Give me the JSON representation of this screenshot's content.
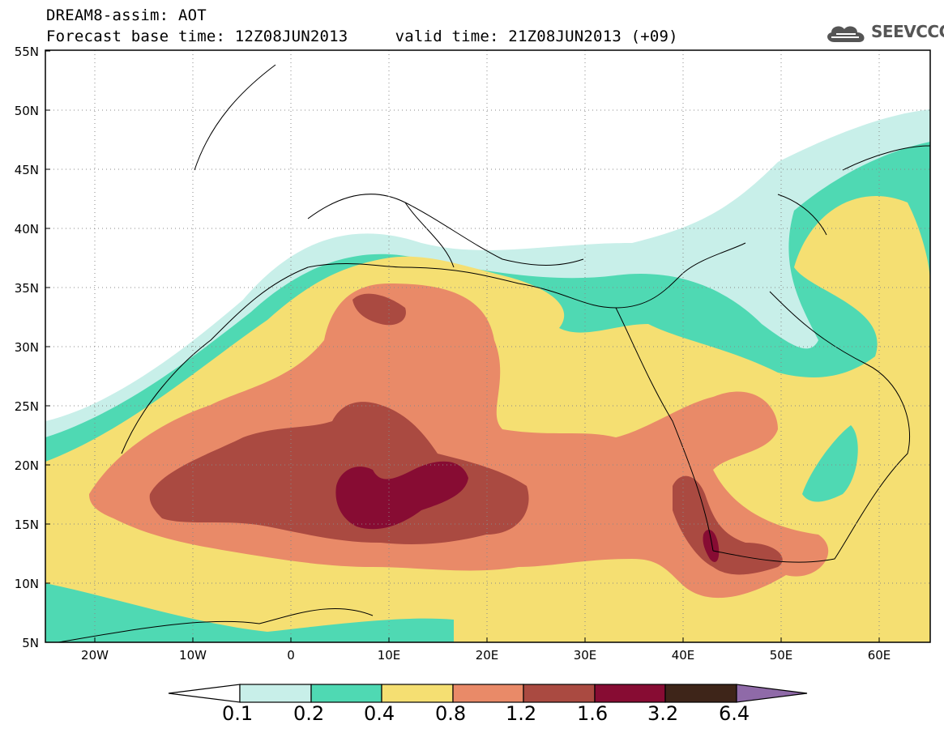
{
  "header": {
    "title": "DREAM8-assim: AOT",
    "subtitle": "Forecast base time: 12Z08JUN2013     valid time: 21Z08JUN2013 (+09)"
  },
  "logo": {
    "text": "SEEVCCC",
    "icon": "cloud-logo-icon"
  },
  "map": {
    "lon_range": [
      -25,
      65
    ],
    "lat_range": [
      5,
      55
    ],
    "lat_ticks": [
      "5N",
      "10N",
      "15N",
      "20N",
      "25N",
      "30N",
      "35N",
      "40N",
      "45N",
      "50N",
      "55N"
    ],
    "lon_ticks": [
      "20W",
      "10W",
      "0",
      "10E",
      "20E",
      "30E",
      "40E",
      "50E",
      "60E"
    ],
    "gridlines": "dotted"
  },
  "colorbar": {
    "labels": [
      "0.1",
      "0.2",
      "0.4",
      "0.8",
      "1.2",
      "1.6",
      "3.2",
      "6.4"
    ],
    "colors": [
      "#ffffff",
      "#c8efe9",
      "#4fd9b3",
      "#f5df72",
      "#e98a68",
      "#aa4a41",
      "#870c33",
      "#3e2519",
      "#8f6aa8"
    ]
  },
  "colors": {
    "lt_cyan": "#c8efe9",
    "teal": "#4fd9b3",
    "yellow": "#f5df72",
    "salmon": "#e98a68",
    "brown": "#aa4a41",
    "maroon": "#870c33"
  }
}
